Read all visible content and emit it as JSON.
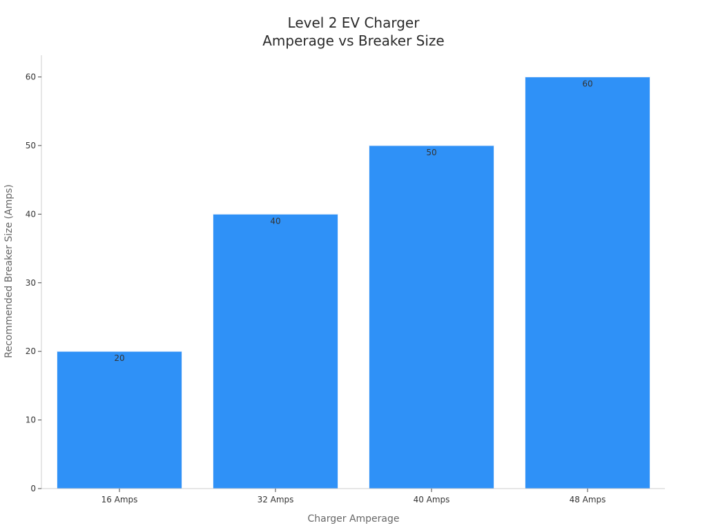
{
  "chart_data": {
    "type": "bar",
    "title_lines": [
      "Level 2 EV Charger",
      "Amperage vs Breaker Size"
    ],
    "xlabel": "Charger Amperage",
    "ylabel": "Recommended Breaker Size (Amps)",
    "categories": [
      "16 Amps",
      "32 Amps",
      "40 Amps",
      "48 Amps"
    ],
    "values": [
      20,
      40,
      50,
      60
    ],
    "data_labels": [
      "20",
      "40",
      "50",
      "60"
    ],
    "ylim": [
      0,
      63
    ],
    "yticks": [
      0,
      10,
      20,
      30,
      40,
      50,
      60
    ],
    "bar_color": "#2f91f7",
    "grid": false,
    "legend": "none"
  }
}
